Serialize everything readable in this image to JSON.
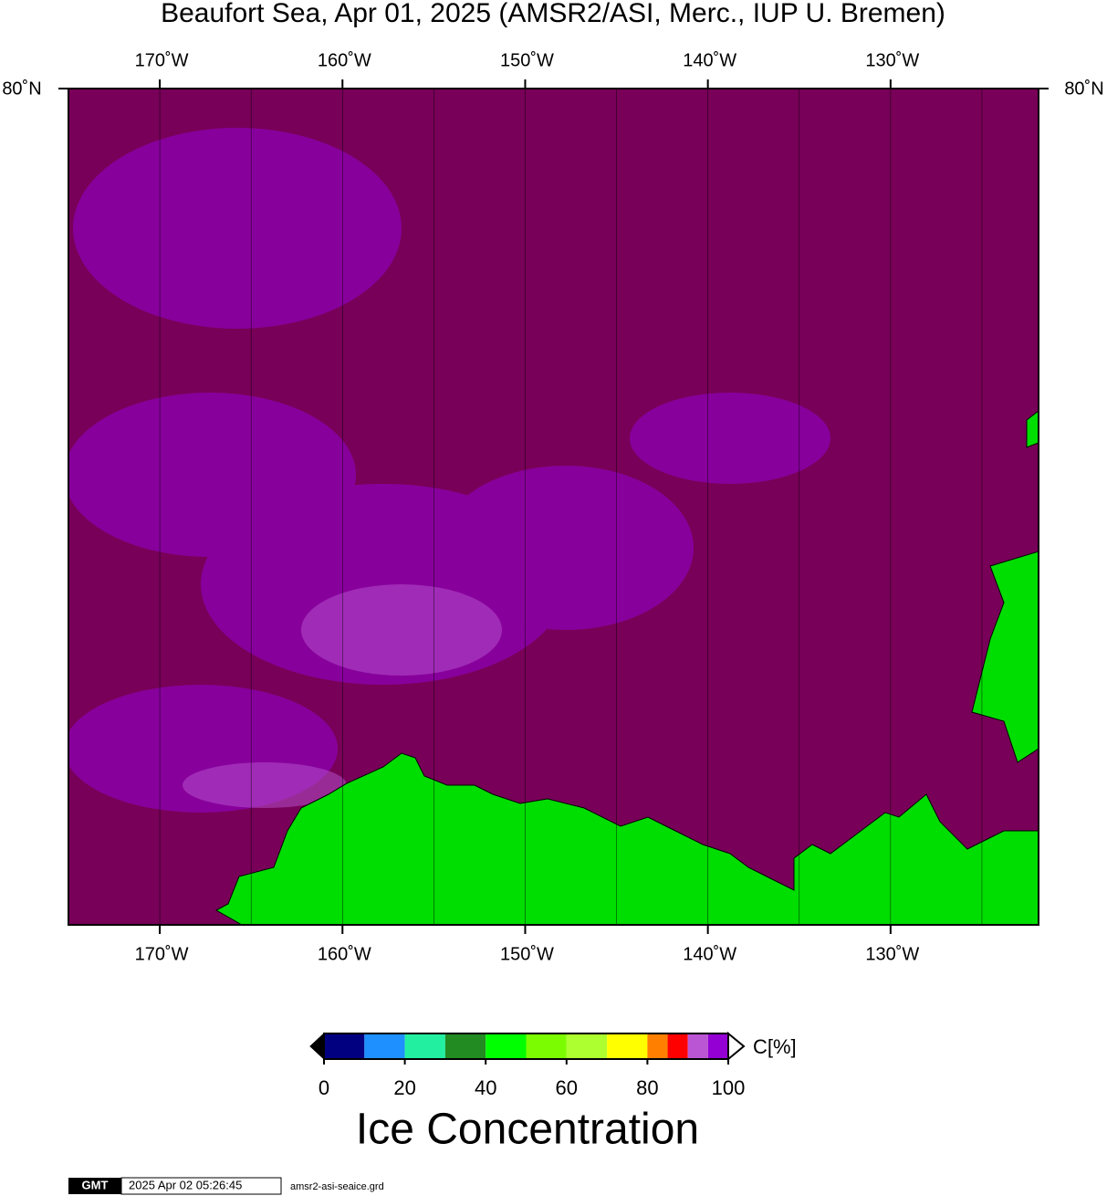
{
  "map": {
    "title": "Beaufort Sea, Apr 01, 2025 (AMSR2/ASI, Merc., IUP U. Bremen)",
    "xlim": [
      -175,
      -121.9
    ],
    "xticks": [
      {
        "value": -170,
        "label": "170˚W"
      },
      {
        "value": -160,
        "label": "160˚W"
      },
      {
        "value": -150,
        "label": "150˚W"
      },
      {
        "value": -140,
        "label": "140˚W"
      },
      {
        "value": -130,
        "label": "130˚W"
      }
    ],
    "xgrid": [
      -165,
      -155,
      -145,
      -135,
      -125
    ],
    "lat_label": "80˚N"
  },
  "colorbar": {
    "bins": [
      0,
      10,
      20,
      30,
      40,
      50,
      60,
      70,
      80,
      85,
      90,
      95,
      100
    ],
    "colors": [
      "#000080",
      "#1e90ff",
      "#22f0a0",
      "#228b22",
      "#00ff00",
      "#7cfc00",
      "#adff2f",
      "#ffff00",
      "#ff8000",
      "#ff0000",
      "#ba55d3",
      "#9400d3"
    ],
    "ticks": [
      0,
      20,
      40,
      60,
      80,
      100
    ],
    "unit_label": "C[%]",
    "title": "Ice Concentration"
  },
  "footer": {
    "logo": "GMT",
    "timestamp": "2025 Apr 02 05:26:45",
    "filename": "amsr2-asi-seaice.grd"
  }
}
